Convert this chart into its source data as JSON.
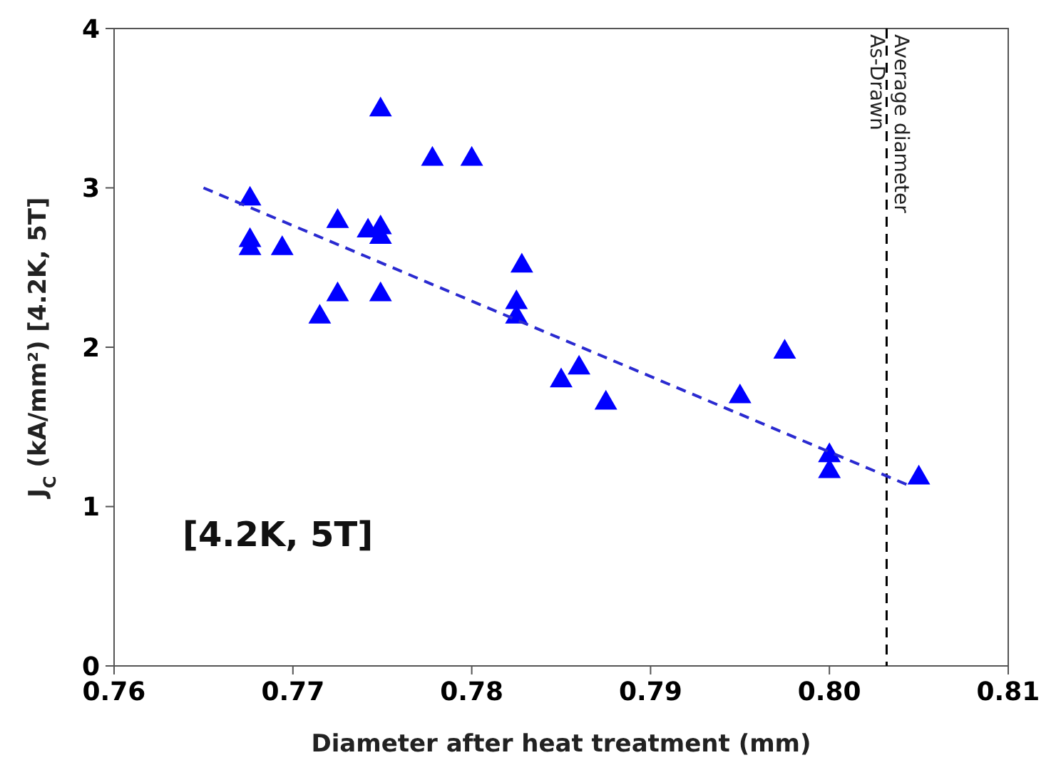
{
  "chart_data": {
    "type": "scatter",
    "xlabel": "Diameter after heat treatment (mm)",
    "ylabel": "J$_{C}$ (kA/mm²) [4.2K, 5T]",
    "xlim": [
      0.76,
      0.81
    ],
    "xticks": [
      {
        "value": 0.76,
        "label": "0.76"
      },
      {
        "value": 0.77,
        "label": "0.77"
      },
      {
        "value": 0.78,
        "label": "0.78"
      },
      {
        "value": 0.79,
        "label": "0.79"
      },
      {
        "value": 0.8,
        "label": "0.80"
      },
      {
        "value": 0.81,
        "label": "0.81"
      }
    ],
    "ylim": [
      0,
      4
    ],
    "yticks": [
      0,
      1,
      2,
      3,
      4
    ],
    "grid": false,
    "marker": "triangle",
    "series": [
      {
        "color": "#0000ff",
        "x": [
          0.7676,
          0.7676,
          0.7676,
          0.7694,
          0.7715,
          0.7725,
          0.7725,
          0.7742,
          0.7749,
          0.7749,
          0.7749,
          0.7749,
          0.7778,
          0.78,
          0.7825,
          0.7825,
          0.7828,
          0.785,
          0.786,
          0.7875,
          0.795,
          0.7975,
          0.8,
          0.8,
          0.805
        ],
        "values": [
          2.93,
          2.67,
          2.62,
          2.62,
          2.19,
          2.79,
          2.33,
          2.73,
          2.75,
          2.69,
          3.49,
          2.33,
          3.18,
          3.18,
          2.28,
          2.19,
          2.51,
          1.79,
          1.87,
          1.65,
          1.69,
          1.97,
          1.32,
          1.22,
          1.18
        ]
      },
      {
        "type": "line",
        "color": "#2a2ad0",
        "line_style": "dashed",
        "marker": "none",
        "x": [
          0.765,
          0.8045
        ],
        "values": [
          3.0,
          1.13
        ]
      }
    ],
    "ref_lines": [
      {
        "axis": "x",
        "value": 0.8032,
        "label": "Average diameter\nAs-Drawn",
        "color": "#000000",
        "line_style": "dashed"
      }
    ],
    "annotations": [
      "[4.2K, 5T]"
    ]
  }
}
